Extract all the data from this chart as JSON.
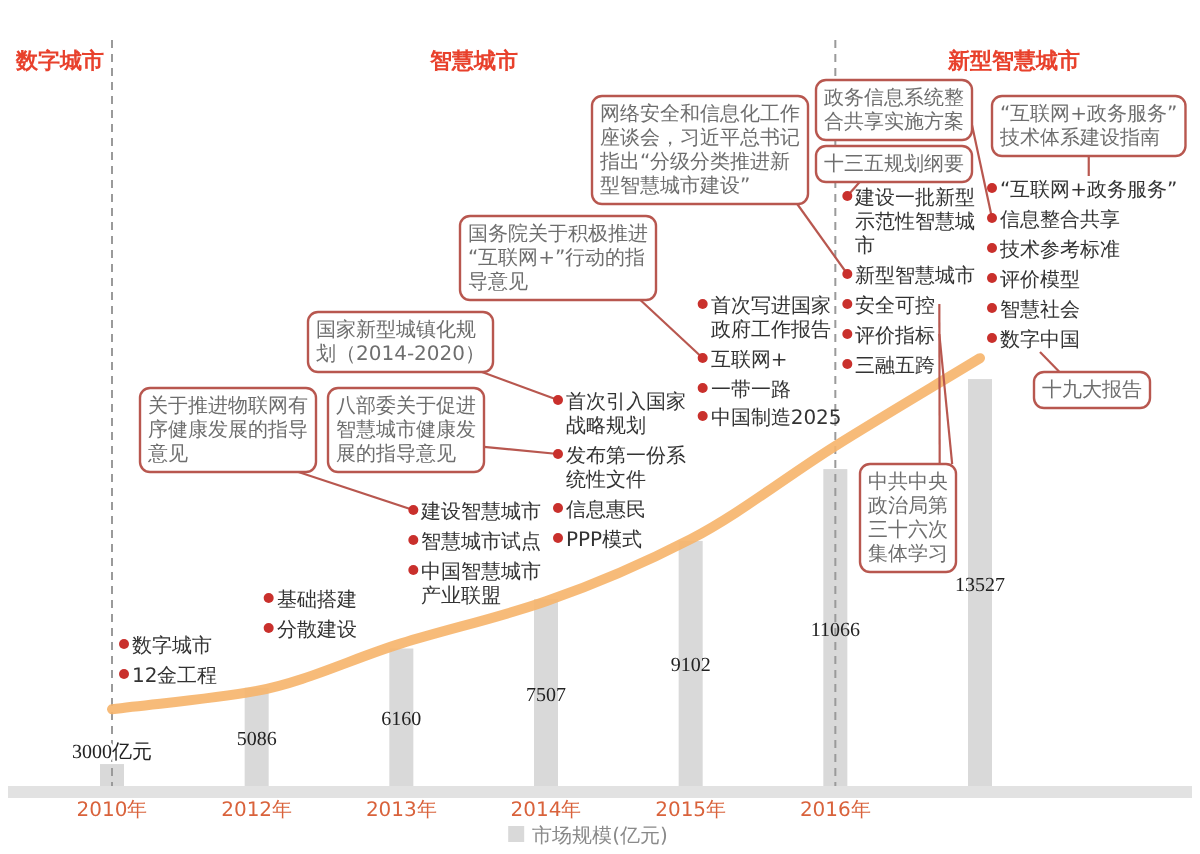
{
  "chart_data": {
    "type": "bar",
    "categories": [
      "2010年",
      "2012年",
      "2013年",
      "2014年",
      "2015年",
      "2016年",
      null
    ],
    "series": [
      {
        "name": "市场规模(亿元)",
        "color": "#d9d9d9",
        "values": [
          3000,
          5086,
          6160,
          7507,
          9102,
          11066,
          13527
        ],
        "value_labels": [
          "3000亿元",
          "5086",
          "6160",
          "7507",
          "9102",
          "11066",
          "13527"
        ]
      },
      {
        "type": "line",
        "color": "#f6b46a",
        "values": [
          4500,
          5000,
          6300,
          7450,
          9150,
          11700,
          14100
        ]
      }
    ],
    "ylim": [
      2400,
      22800
    ],
    "tick_labels": "x",
    "legend": "bottom",
    "ref_lines": [
      {
        "axis": "x",
        "value": "2010年",
        "color": "#9a9a9a",
        "line_style": "dashed"
      },
      {
        "axis": "x",
        "value": "2016年",
        "color": "#9a9a9a",
        "line_style": "dashed"
      }
    ],
    "annotations": [
      "数字城市",
      "智慧城市",
      "新型智慧城市",
      "数字城市",
      "12金工程",
      "基础搭建",
      "分散建设",
      "建设智慧城市",
      "智慧城市试点",
      "中国智慧城市产业联盟",
      "首次引入国家战略规划",
      "发布第一份系统性文件",
      "信息惠民",
      "PPP模式",
      "首次写进国家政府工作报告",
      "互联网+",
      "一带一路",
      "中国制造2025",
      "建设一批新型示范性智慧城市",
      "新型智慧城市",
      "安全可控",
      "评价指标",
      "三融五跨",
      "“互联网+政务服务”",
      "信息整合共享",
      "技术参考标准",
      "评价模型",
      "智慧社会",
      "数字中国",
      "关于推进物联网有序健康发展的指导意见",
      "国家新型城镇化规划（2014-2020）",
      "八部委关于促进智慧城市健康发展的指导意见",
      "国务院关于积极推进“互联网+”行动的指导意见",
      "网络安全和信息化工作座谈会，习近平总书记指出“分级分类推进新型智慧城市建设”",
      "十三五规划纲要",
      "政务信息系统整合共享实施方案",
      "“互联网+政务服务”技术体系建设指南",
      "十九大报告",
      "中共中央政治局第三十六次集体学习"
    ]
  }
}
